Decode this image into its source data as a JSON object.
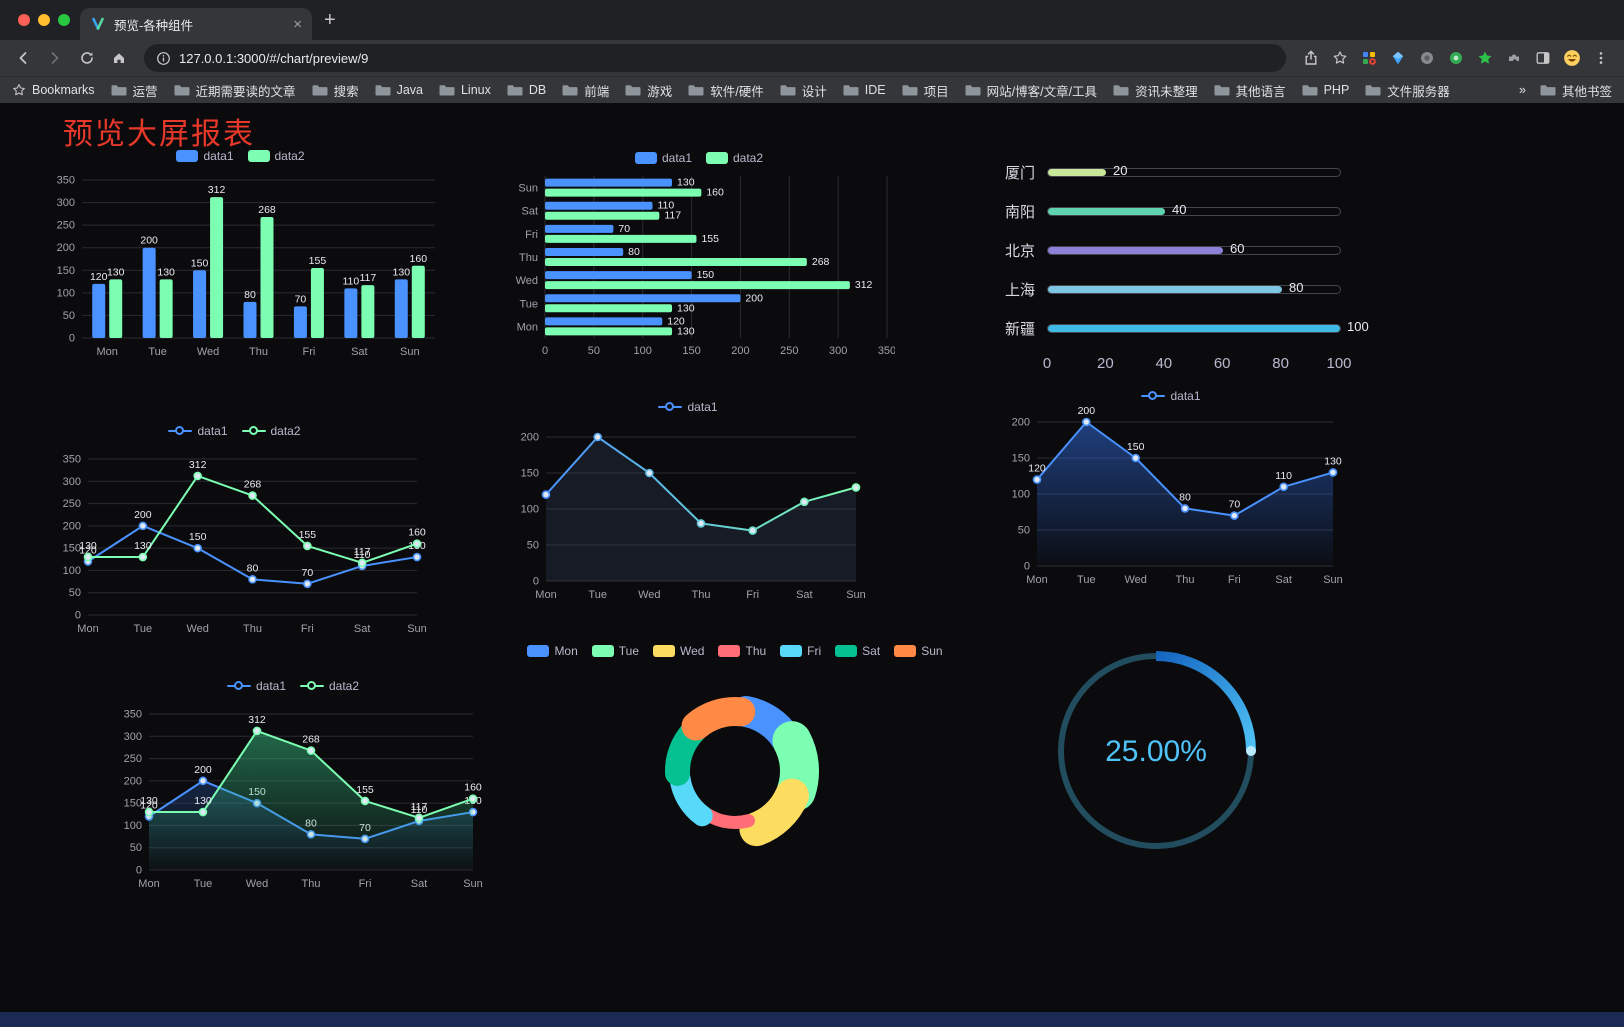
{
  "browser": {
    "tab_title": "预览-各种组件",
    "close_tab_label": "×",
    "new_tab_label": "+",
    "url": "127.0.0.1:3000/#/chart/preview/9",
    "bookmarks_label": "Bookmarks",
    "bookmark_folders": [
      "运营",
      "近期需要读的文章",
      "搜索",
      "Java",
      "Linux",
      "DB",
      "前端",
      "游戏",
      "软件/硬件",
      "设计",
      "IDE",
      "项目",
      "网站/博客/文章/工具",
      "资讯未整理",
      "其他语言",
      "PHP",
      "文件服务器"
    ],
    "overflow_chevron": "»",
    "other_bookmarks_label": "其他书签"
  },
  "page": {
    "title": "预览大屏报表",
    "title_color": "#e8382a"
  },
  "chart_data": [
    {
      "id": "c-bar",
      "type": "bar",
      "categories": [
        "Mon",
        "Tue",
        "Wed",
        "Thu",
        "Fri",
        "Sat",
        "Sun"
      ],
      "series": [
        {
          "name": "data1",
          "color": "#4992ff",
          "values": [
            120,
            200,
            150,
            80,
            70,
            110,
            130
          ]
        },
        {
          "name": "data2",
          "color": "#7cffb2",
          "values": [
            130,
            130,
            312,
            268,
            155,
            117,
            160
          ]
        }
      ],
      "ylim": [
        0,
        350
      ],
      "yticks": [
        0,
        50,
        100,
        150,
        200,
        250,
        300,
        350
      ],
      "legend_position": "top",
      "grid": true
    },
    {
      "id": "c-hbar",
      "type": "bar",
      "orientation": "horizontal",
      "category_order": "top-to-bottom",
      "categories": [
        "Sun",
        "Sat",
        "Fri",
        "Thu",
        "Wed",
        "Tue",
        "Mon"
      ],
      "series": [
        {
          "name": "data1",
          "color": "#4992ff",
          "values": [
            130,
            110,
            70,
            80,
            150,
            200,
            120
          ]
        },
        {
          "name": "data2",
          "color": "#7cffb2",
          "values": [
            160,
            117,
            155,
            268,
            312,
            130,
            130
          ]
        }
      ],
      "xlim": [
        0,
        350
      ],
      "xticks": [
        0,
        50,
        100,
        150,
        200,
        250,
        300,
        350
      ],
      "legend_position": "top",
      "grid": true
    },
    {
      "id": "c-progress",
      "type": "bar",
      "orientation": "progress",
      "items": [
        {
          "label": "厦门",
          "value": 20,
          "color": "#c9e89a"
        },
        {
          "label": "南阳",
          "value": 40,
          "color": "#5fd3ae"
        },
        {
          "label": "北京",
          "value": 60,
          "color": "#8c81d8"
        },
        {
          "label": "上海",
          "value": 80,
          "color": "#7fc6e4"
        },
        {
          "label": "新疆",
          "value": 100,
          "color": "#3ebae5"
        }
      ],
      "max": 100,
      "xticks": [
        0,
        20,
        40,
        60,
        80,
        100
      ]
    },
    {
      "id": "c-line2",
      "type": "line",
      "categories": [
        "Mon",
        "Tue",
        "Wed",
        "Thu",
        "Fri",
        "Sat",
        "Sun"
      ],
      "series": [
        {
          "name": "data1",
          "color": "#4992ff",
          "values": [
            120,
            200,
            150,
            80,
            70,
            110,
            130
          ]
        },
        {
          "name": "data2",
          "color": "#7cffb2",
          "values": [
            130,
            130,
            312,
            268,
            155,
            117,
            160
          ]
        }
      ],
      "ylim": [
        0,
        350
      ],
      "yticks": [
        0,
        50,
        100,
        150,
        200,
        250,
        300,
        350
      ],
      "point_labels": true
    },
    {
      "id": "c-linegrad",
      "type": "line",
      "categories": [
        "Mon",
        "Tue",
        "Wed",
        "Thu",
        "Fri",
        "Sat",
        "Sun"
      ],
      "series": [
        {
          "name": "data1",
          "color_start": "#4992ff",
          "color_end": "#7cffb2",
          "values": [
            120,
            200,
            150,
            80,
            70,
            110,
            130
          ]
        }
      ],
      "ylim": [
        0,
        200
      ],
      "yticks": [
        0,
        50,
        100,
        150,
        200
      ],
      "point_labels": false
    },
    {
      "id": "c-area",
      "type": "area",
      "categories": [
        "Mon",
        "Tue",
        "Wed",
        "Thu",
        "Fri",
        "Sat",
        "Sun"
      ],
      "series": [
        {
          "name": "data1",
          "color": "#4992ff",
          "fill": "#2f69d8",
          "values": [
            120,
            200,
            150,
            80,
            70,
            110,
            130
          ]
        }
      ],
      "ylim": [
        0,
        200
      ],
      "yticks": [
        0,
        50,
        100,
        150,
        200
      ],
      "point_labels": true
    },
    {
      "id": "c-linearea",
      "type": "area",
      "categories": [
        "Mon",
        "Tue",
        "Wed",
        "Thu",
        "Fri",
        "Sat",
        "Sun"
      ],
      "series": [
        {
          "name": "data1",
          "color": "#4992ff",
          "fill": "#2a5aa8",
          "values": [
            120,
            200,
            150,
            80,
            70,
            110,
            130
          ]
        },
        {
          "name": "data2",
          "color": "#7cffb2",
          "fill": "#38c484",
          "values": [
            130,
            130,
            312,
            268,
            155,
            117,
            160
          ]
        }
      ],
      "ylim": [
        0,
        350
      ],
      "yticks": [
        0,
        50,
        100,
        150,
        200,
        250,
        300,
        350
      ],
      "point_labels": true
    },
    {
      "id": "c-pie",
      "type": "pie",
      "style": "rose-donut",
      "slices": [
        {
          "label": "Mon",
          "color": "#4992ff",
          "radius": 76
        },
        {
          "label": "Tue",
          "color": "#7cffb2",
          "radius": 84
        },
        {
          "label": "Wed",
          "color": "#fddd60",
          "radius": 79
        },
        {
          "label": "Thu",
          "color": "#ff6e76",
          "radius": 58
        },
        {
          "label": "Fri",
          "color": "#58d9f9",
          "radius": 66
        },
        {
          "label": "Sat",
          "color": "#05c091",
          "radius": 70
        },
        {
          "label": "Sun",
          "color": "#ff8a45",
          "radius": 74
        }
      ],
      "inner_radius": 45,
      "legend_position": "top"
    },
    {
      "id": "c-gauge",
      "type": "gauge",
      "percent": 25,
      "value_text": "25.00%",
      "progress_colors": [
        "#1565c0",
        "#4fc3f7"
      ],
      "track_color": "#214d5e",
      "text_color": "#4fc3f7"
    }
  ]
}
